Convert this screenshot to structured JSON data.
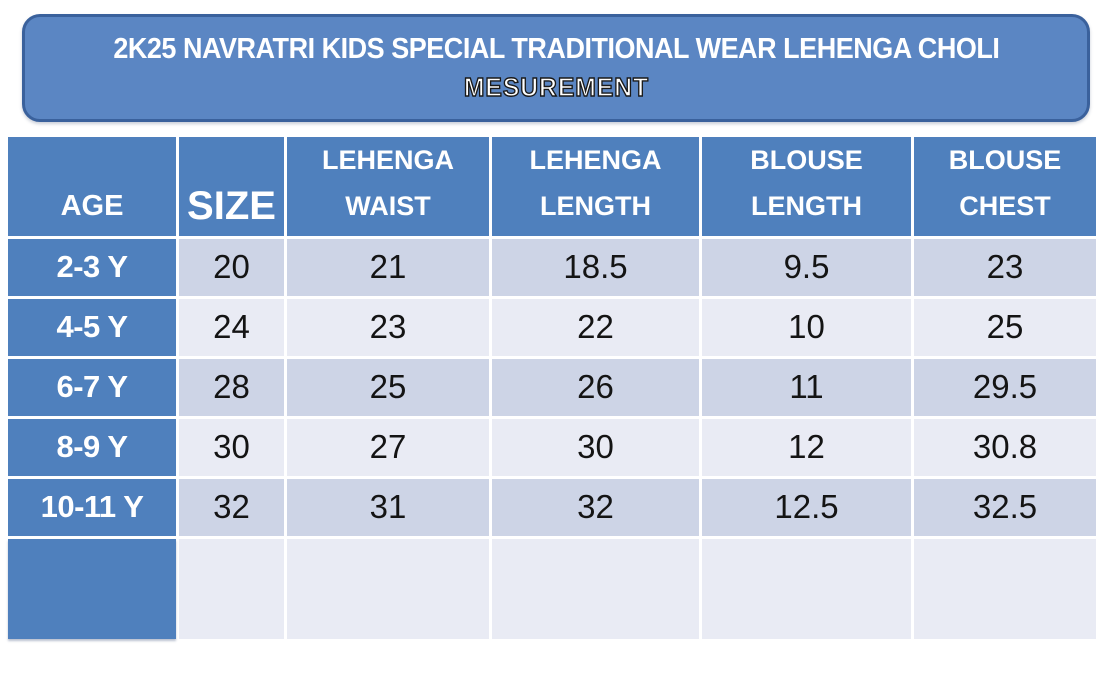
{
  "banner": {
    "title": "2K25 NAVRATRI KIDS SPECIAL TRADITIONAL WEAR LEHENGA CHOLI",
    "subtitle": "MESUREMENT"
  },
  "chart_data": {
    "type": "table",
    "title": "2K25 NAVRATRI KIDS SPECIAL TRADITIONAL WEAR LEHENGA CHOLI MESUREMENT",
    "columns": [
      "AGE",
      "SIZE",
      "LEHENGA WAIST",
      "LEHENGA LENGTH",
      "BLOUSE LENGTH",
      "BLOUSE CHEST"
    ],
    "rows": [
      [
        "2-3 Y",
        "20",
        "21",
        "18.5",
        "9.5",
        "23"
      ],
      [
        "4-5 Y",
        "24",
        "23",
        "22",
        "10",
        "25"
      ],
      [
        "6-7 Y",
        "28",
        "25",
        "26",
        "11",
        "29.5"
      ],
      [
        "8-9 Y",
        "30",
        "27",
        "30",
        "12",
        "30.8"
      ],
      [
        "10-11 Y",
        "32",
        "31",
        "32",
        "12.5",
        "32.5"
      ],
      [
        "",
        "",
        "",
        "",
        "",
        ""
      ]
    ]
  },
  "colors": {
    "banner_fill": "#5b86c3",
    "banner_border": "#3a619c",
    "table_header_blue": "#4f80bd",
    "row_dark": "#cdd4e6",
    "row_light": "#e9ebf4",
    "grid_gap": "#ffffff",
    "header_text": "#ffffff",
    "cell_text": "#141414"
  }
}
